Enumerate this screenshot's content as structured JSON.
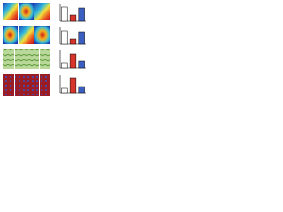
{
  "chart_data": [
    {
      "type": "bar",
      "categories": [
        null,
        null,
        null
      ],
      "values": [
        0.8,
        0.35,
        0.75
      ],
      "colors": [
        "#ffffff",
        "#d9342b",
        "#3b5fc0"
      ],
      "ylim": [
        0,
        1
      ]
    },
    {
      "type": "bar",
      "categories": [
        null,
        null,
        null
      ],
      "values": [
        0.75,
        0.3,
        0.7
      ],
      "colors": [
        "#ffffff",
        "#d9342b",
        "#3b5fc0"
      ],
      "ylim": [
        0,
        1
      ]
    },
    {
      "type": "bar",
      "categories": [
        null,
        null,
        null
      ],
      "values": [
        0.3,
        0.8,
        0.4
      ],
      "colors": [
        "#ffffff",
        "#d9342b",
        "#3b5fc0"
      ],
      "ylim": [
        0,
        1
      ]
    },
    {
      "type": "bar",
      "categories": [
        null,
        null,
        null
      ],
      "values": [
        0.25,
        0.85,
        0.35
      ],
      "colors": [
        "#ffffff",
        "#d9342b",
        "#3b5fc0"
      ],
      "ylim": [
        0,
        1
      ]
    }
  ]
}
